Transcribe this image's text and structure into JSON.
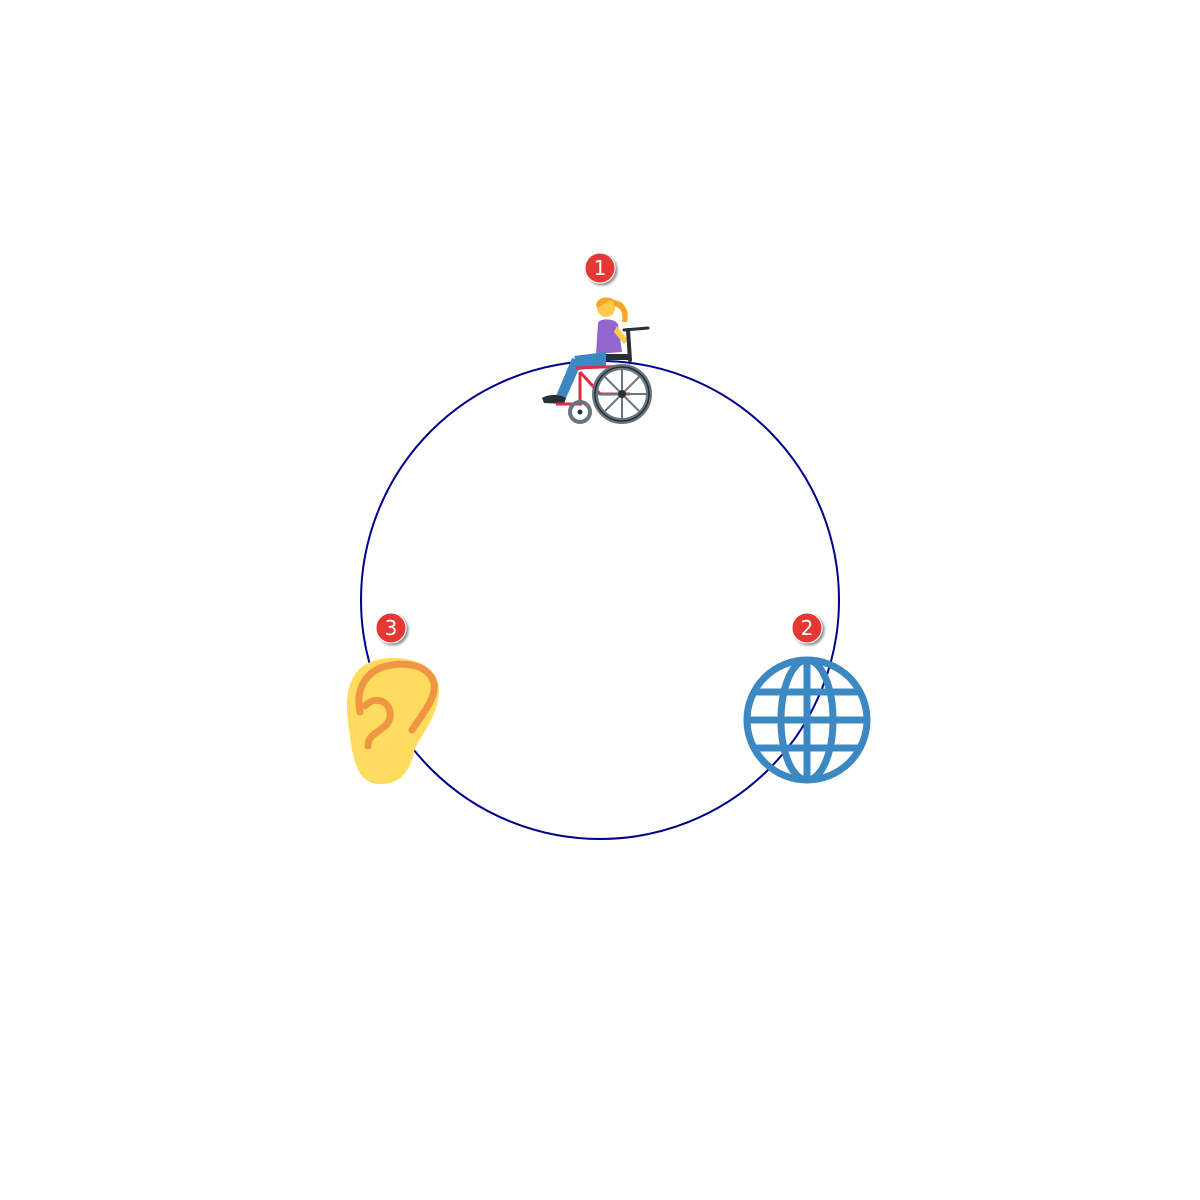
{
  "diagram": {
    "ring_color": "#00008b",
    "badge_color": "#e53935",
    "nodes": [
      {
        "number": "1",
        "icon": "person-in-manual-wheelchair-icon"
      },
      {
        "number": "2",
        "icon": "globe-with-meridians-icon"
      },
      {
        "number": "3",
        "icon": "ear-icon"
      }
    ]
  }
}
